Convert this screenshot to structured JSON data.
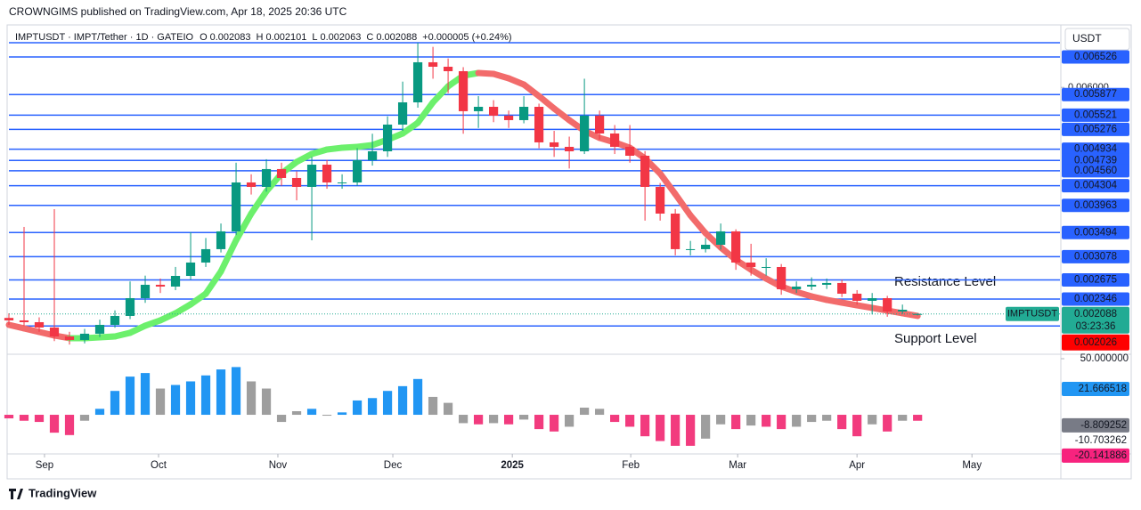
{
  "header": "CROWNGIMS published on TradingView.com, Apr 18, 2025 20:36 UTC",
  "footer": "TradingView",
  "chart_data": {
    "type": "candlestick",
    "symbol": "IMPTUSDT · IMPT/Tether · 1D · GATEIO",
    "ohlc_legend": [
      {
        "label": "O",
        "value": 0.002083
      },
      {
        "label": "H",
        "value": 0.002101
      },
      {
        "label": "L",
        "value": 0.002063
      },
      {
        "label": "C",
        "value": 0.002088
      }
    ],
    "change": "+0.000005 (+0.24%)",
    "currency": "USDT",
    "up_color": "#089981",
    "down_color": "#f23645",
    "candles": [
      [
        0.00202,
        0.0021,
        0.0019,
        0.001977
      ],
      [
        0.001977,
        0.003591,
        0.00188,
        0.001946
      ],
      [
        0.001946,
        0.00203,
        0.00178,
        0.001854
      ],
      [
        0.001854,
        0.003898,
        0.00162,
        0.0017
      ],
      [
        0.0017,
        0.00178,
        0.00156,
        0.001639
      ],
      [
        0.001639,
        0.00183,
        0.00158,
        0.001747
      ],
      [
        0.001747,
        0.00199,
        0.00169,
        0.0019
      ],
      [
        0.0019,
        0.00215,
        0.00185,
        0.002054
      ],
      [
        0.002054,
        0.00265,
        0.002,
        0.002361
      ],
      [
        0.002361,
        0.00275,
        0.00228,
        0.002592
      ],
      [
        0.002592,
        0.0027,
        0.00245,
        0.002561
      ],
      [
        0.002561,
        0.0029,
        0.0025,
        0.002745
      ],
      [
        0.002745,
        0.0035,
        0.00268,
        0.002976
      ],
      [
        0.002976,
        0.0034,
        0.0029,
        0.003207
      ],
      [
        0.003207,
        0.00365,
        0.00315,
        0.003514
      ],
      [
        0.003514,
        0.0047,
        0.00345,
        0.004359
      ],
      [
        0.004359,
        0.0045,
        0.00415,
        0.004282
      ],
      [
        0.004282,
        0.00476,
        0.0042,
        0.00459
      ],
      [
        0.00459,
        0.0047,
        0.0043,
        0.004436
      ],
      [
        0.004436,
        0.00455,
        0.00405,
        0.004282
      ],
      [
        0.004282,
        0.0048,
        0.00336,
        0.004666
      ],
      [
        0.004666,
        0.00475,
        0.00425,
        0.004359
      ],
      [
        0.004359,
        0.0045,
        0.00425,
        0.004359
      ],
      [
        0.004359,
        0.00495,
        0.0043,
        0.004743
      ],
      [
        0.004743,
        0.0052,
        0.00465,
        0.004897
      ],
      [
        0.004897,
        0.0055,
        0.0048,
        0.005358
      ],
      [
        0.005358,
        0.0061,
        0.00525,
        0.005742
      ],
      [
        0.005742,
        0.006772,
        0.00565,
        0.006434
      ],
      [
        0.006434,
        0.0067,
        0.00615,
        0.006357
      ],
      [
        0.006357,
        0.0065,
        0.0059,
        0.00628
      ],
      [
        0.00628,
        0.00635,
        0.0052,
        0.005589
      ],
      [
        0.005589,
        0.00585,
        0.0053,
        0.005665
      ],
      [
        0.005665,
        0.00578,
        0.0054,
        0.005512
      ],
      [
        0.005512,
        0.0056,
        0.0053,
        0.005435
      ],
      [
        0.005435,
        0.00585,
        0.00538,
        0.005665
      ],
      [
        0.005665,
        0.00572,
        0.00495,
        0.005051
      ],
      [
        0.005051,
        0.00525,
        0.0048,
        0.004974
      ],
      [
        0.004974,
        0.00515,
        0.0046,
        0.004897
      ],
      [
        0.004897,
        0.00615,
        0.00485,
        0.005512
      ],
      [
        0.005512,
        0.0056,
        0.0051,
        0.005204
      ],
      [
        0.005204,
        0.00535,
        0.00485,
        0.004974
      ],
      [
        0.004974,
        0.00535,
        0.0047,
        0.00482
      ],
      [
        0.00482,
        0.0049,
        0.0037,
        0.004282
      ],
      [
        0.004282,
        0.00435,
        0.0037,
        0.003821
      ],
      [
        0.003821,
        0.0039,
        0.0031,
        0.003207
      ],
      [
        0.003207,
        0.00335,
        0.0031,
        0.003207
      ],
      [
        0.003207,
        0.0034,
        0.00315,
        0.003283
      ],
      [
        0.003283,
        0.00365,
        0.0032,
        0.003514
      ],
      [
        0.003514,
        0.00355,
        0.00285,
        0.002976
      ],
      [
        0.002976,
        0.0033,
        0.00275,
        0.002899
      ],
      [
        0.002899,
        0.00305,
        0.00275,
        0.002899
      ],
      [
        0.002899,
        0.00295,
        0.00242,
        0.002515
      ],
      [
        0.002515,
        0.00265,
        0.00245,
        0.002561
      ],
      [
        0.002561,
        0.00272,
        0.0025,
        0.002592
      ],
      [
        0.002592,
        0.0027,
        0.00252,
        0.002623
      ],
      [
        0.002623,
        0.00268,
        0.00238,
        0.002438
      ],
      [
        0.002438,
        0.0025,
        0.00225,
        0.002315
      ],
      [
        0.002315,
        0.00245,
        0.00208,
        0.002361
      ],
      [
        0.002361,
        0.0024,
        0.00204,
        0.002131
      ],
      [
        0.002131,
        0.00225,
        0.00209,
        0.002161
      ],
      [
        0.002083,
        0.002101,
        0.002063,
        0.002088
      ]
    ],
    "xlim": [
      0,
      69.4
    ],
    "xticks": [
      {
        "value": 2.35,
        "label": "Sep"
      },
      {
        "value": 9.88,
        "label": "Oct"
      },
      {
        "value": 17.76,
        "label": "Nov"
      },
      {
        "value": 25.35,
        "label": "Dec"
      },
      {
        "value": 33.24,
        "label": "2025"
      },
      {
        "value": 41.06,
        "label": "Feb"
      },
      {
        "value": 48.12,
        "label": "Mar"
      },
      {
        "value": 56.0,
        "label": "Apr"
      },
      {
        "value": 63.59,
        "label": "May"
      }
    ],
    "ylim": [
      0.001408,
      0.007079
    ],
    "yticks": [
      {
        "value": 0.006,
        "label": "0.006000"
      }
    ],
    "levels": [
      0.006526,
      0.005877,
      0.005521,
      0.005276,
      0.004934,
      0.004739,
      {
        "value": 0.00456,
        "label": "0.004560"
      },
      0.004304,
      0.003963,
      0.003494,
      0.003078,
      0.002675,
      0.002346
    ],
    "extra_lines": [
      0.006772,
      0.00188
    ],
    "level_color": "#2962ff",
    "ma": {
      "values": [
        0.0019,
        0.001839,
        0.001777,
        0.001716,
        0.00167,
        0.00167,
        0.001685,
        0.0017,
        0.001762,
        0.001885,
        0.001977,
        0.0021,
        0.002254,
        0.002438,
        0.002822,
        0.00336,
        0.003821,
        0.004205,
        0.004513,
        0.004713,
        0.004851,
        0.004928,
        0.004958,
        0.004974,
        0.005005,
        0.005097,
        0.005204,
        0.005389,
        0.005742,
        0.006019,
        0.006203,
        0.006249,
        0.006234,
        0.006157,
        0.00605,
        0.00585,
        0.005635,
        0.005435,
        0.00525,
        0.005128,
        0.005051,
        0.004958,
        0.004774,
        0.004513,
        0.004159,
        0.00379,
        0.003483,
        0.003237,
        0.003022,
        0.002853,
        0.002699,
        0.002561,
        0.002469,
        0.002392,
        0.002331,
        0.002284,
        0.002238,
        0.002192,
        0.002146,
        0.0021,
        0.002054
      ],
      "up_color": "#6cf06c",
      "down_color": "#f26b6b"
    },
    "last": {
      "symbol": "IMPTUSDT",
      "price": 0.002088,
      "countdown": "03:23:36",
      "color": "#22ab94"
    },
    "marker": {
      "value": 0.002026,
      "color": "#ff0000"
    },
    "annotations": [
      {
        "text": "Resistance Level",
        "color": "#f23645"
      },
      {
        "text": "Support Level",
        "color": "#f23645"
      }
    ],
    "oscillator": {
      "values": [
        -3,
        -5,
        -6,
        -15,
        -17,
        -5,
        5,
        20,
        32,
        35,
        22,
        25,
        28,
        33,
        38,
        40,
        28,
        22,
        -6,
        3,
        5,
        0,
        2,
        12,
        14,
        20,
        24,
        30,
        15,
        10,
        -7,
        -8,
        -7,
        -8,
        -4,
        -12,
        -14,
        -10,
        6,
        5,
        -6,
        -10,
        -18,
        -22,
        -26,
        -26,
        -20,
        -8,
        -12,
        -9,
        -10,
        -12,
        -10,
        -6,
        -5,
        -12,
        -18,
        -8,
        -14,
        -5,
        -5
      ],
      "ylim": [
        -32.8,
        50
      ],
      "yticks": [
        {
          "value": 50,
          "label": "50.000000"
        }
      ],
      "labels": [
        {
          "value": 21.666518,
          "color": "#2196f3"
        },
        {
          "value": -8.809252,
          "color": "#787b86"
        },
        {
          "value": -10.703262
        },
        {
          "value": -20.141886,
          "color": "#f7237e"
        }
      ],
      "strong_positive_color": "#2196f3",
      "strong_negative_color": "#f23b7e",
      "weak_color": "#9e9e9e"
    }
  }
}
